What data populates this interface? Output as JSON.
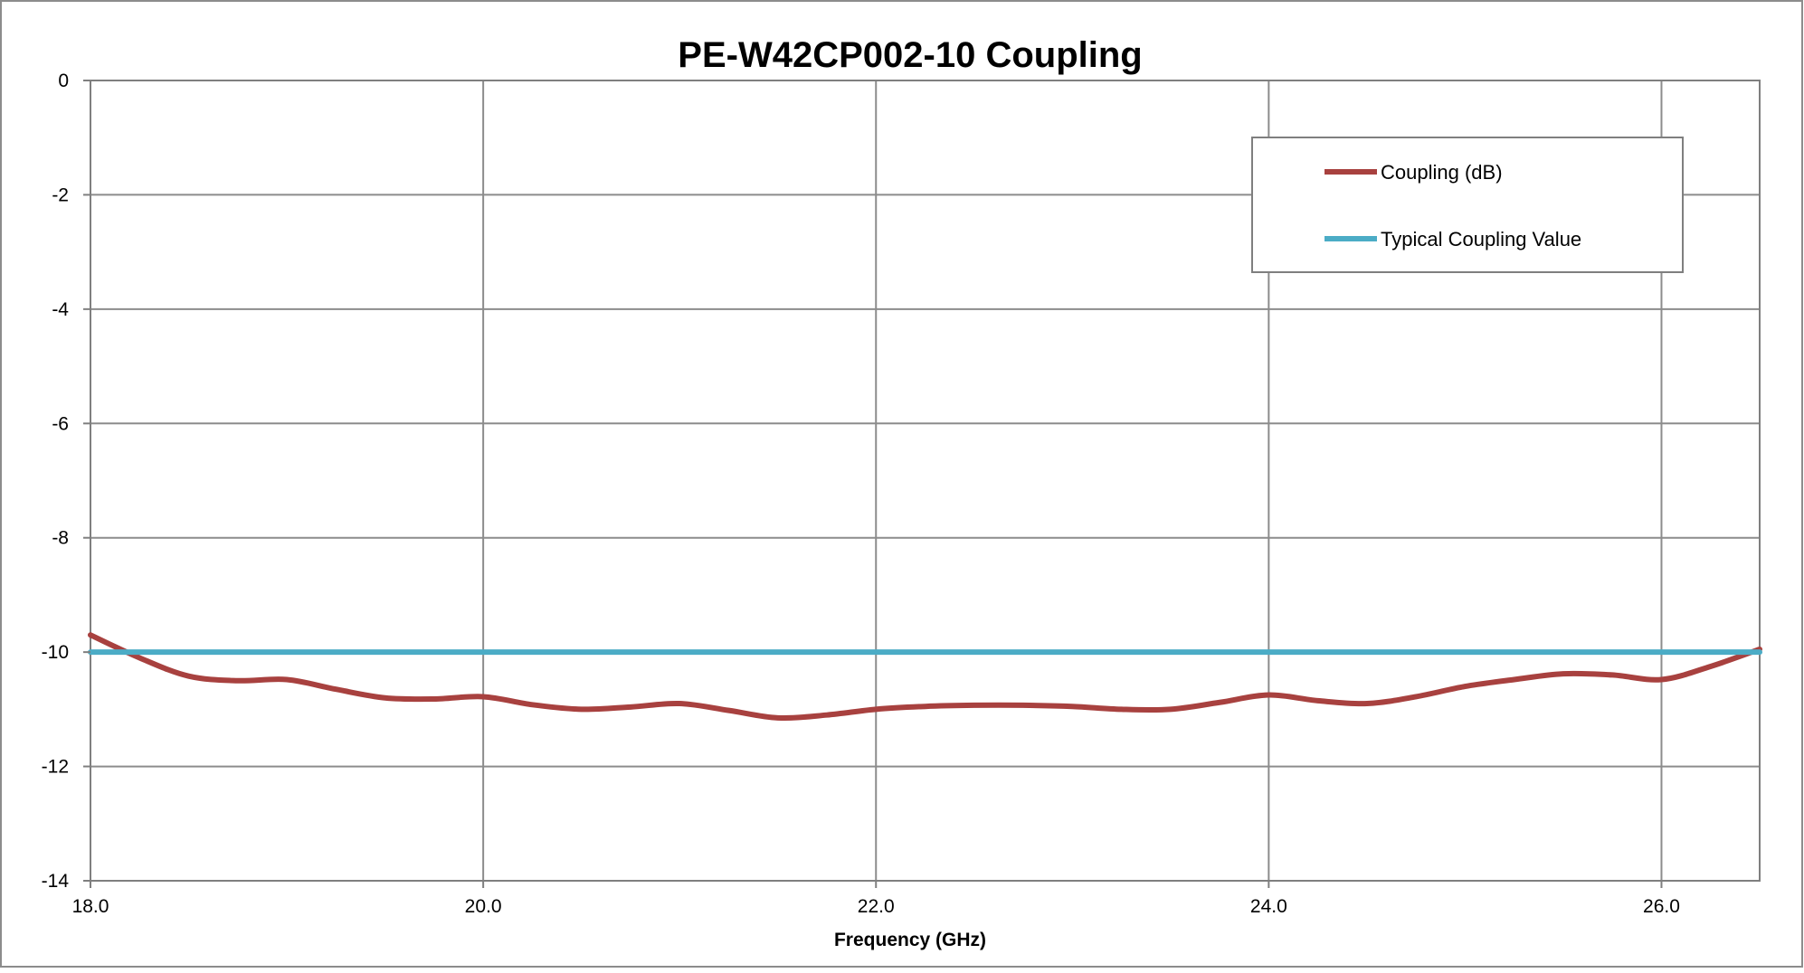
{
  "chart_data": {
    "type": "line",
    "title": "PE-W42CP002-10 Coupling",
    "xlabel": "Frequency (GHz)",
    "ylabel": "",
    "xlim": [
      18.0,
      26.5
    ],
    "ylim": [
      -14,
      0
    ],
    "x_ticks": [
      "18.0",
      "20.0",
      "22.0",
      "24.0",
      "26.0"
    ],
    "x_tick_values": [
      18,
      20,
      22,
      24,
      26
    ],
    "y_ticks": [
      "0",
      "-2",
      "-4",
      "-6",
      "-8",
      "-10",
      "-12",
      "-14"
    ],
    "y_tick_values": [
      0,
      -2,
      -4,
      -6,
      -8,
      -10,
      -12,
      -14
    ],
    "grid": true,
    "legend_position": "top-right",
    "series": [
      {
        "name": "Coupling (dB)",
        "color": "#A8413F",
        "x": [
          18.0,
          18.25,
          18.5,
          18.75,
          19.0,
          19.25,
          19.5,
          19.75,
          20.0,
          20.25,
          20.5,
          20.75,
          21.0,
          21.25,
          21.5,
          21.75,
          22.0,
          22.25,
          22.5,
          22.75,
          23.0,
          23.25,
          23.5,
          23.75,
          24.0,
          24.25,
          24.5,
          24.75,
          25.0,
          25.25,
          25.5,
          25.75,
          26.0,
          26.25,
          26.5
        ],
        "y": [
          -9.7,
          -10.1,
          -10.42,
          -10.5,
          -10.48,
          -10.65,
          -10.8,
          -10.82,
          -10.78,
          -10.92,
          -11.0,
          -10.96,
          -10.9,
          -11.02,
          -11.15,
          -11.1,
          -11.0,
          -10.95,
          -10.93,
          -10.93,
          -10.95,
          -11.0,
          -11.0,
          -10.88,
          -10.75,
          -10.85,
          -10.9,
          -10.78,
          -10.6,
          -10.48,
          -10.38,
          -10.4,
          -10.48,
          -10.25,
          -9.95
        ]
      },
      {
        "name": "Typical Coupling Value",
        "color": "#4BACC6",
        "x": [
          18.0,
          26.5
        ],
        "y": [
          -10,
          -10
        ]
      }
    ]
  }
}
